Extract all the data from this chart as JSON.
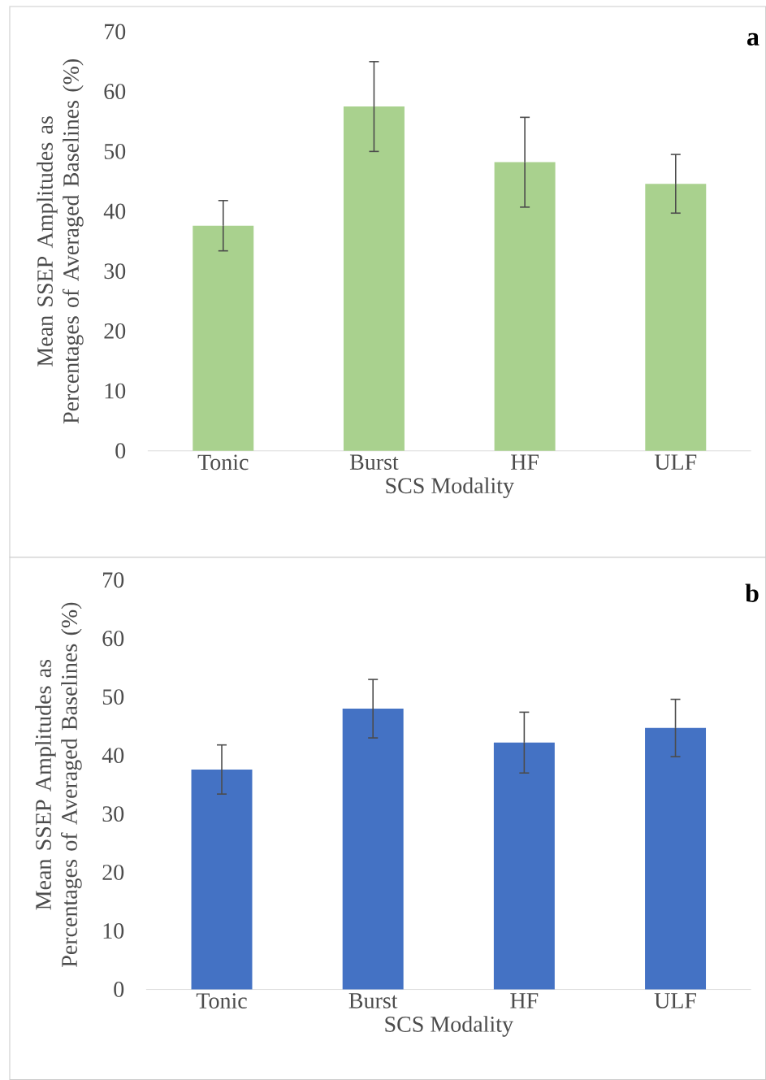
{
  "chart_data": [
    {
      "type": "bar",
      "categories": [
        "Tonic",
        "Burst",
        "HF",
        "ULF"
      ],
      "values": [
        37.6,
        57.5,
        48.2,
        44.6
      ],
      "errors": [
        4.2,
        7.5,
        7.5,
        4.9
      ],
      "color": "#a9d18e",
      "ylim": [
        0,
        70
      ],
      "yticks": [
        0,
        10,
        20,
        30,
        40,
        50,
        60,
        70
      ],
      "xlabel": "SCS Modality",
      "ylabel": "Mean SSEP  Amplitudes as Percentages of Averaged Baselines (%)",
      "annotations": [
        "a"
      ]
    },
    {
      "type": "bar",
      "categories": [
        "Tonic",
        "Burst",
        "HF",
        "ULF"
      ],
      "values": [
        37.6,
        48.0,
        42.2,
        44.7
      ],
      "errors": [
        4.2,
        5.0,
        5.2,
        4.9
      ],
      "color": "#4472c4",
      "ylim": [
        0,
        70
      ],
      "yticks": [
        0,
        10,
        20,
        30,
        40,
        50,
        60,
        70
      ],
      "xlabel": "SCS Modality",
      "ylabel": "Mean SSEP Amplitudes as Percentages of Averaged Baselines (%)",
      "annotations": [
        "b"
      ]
    }
  ]
}
